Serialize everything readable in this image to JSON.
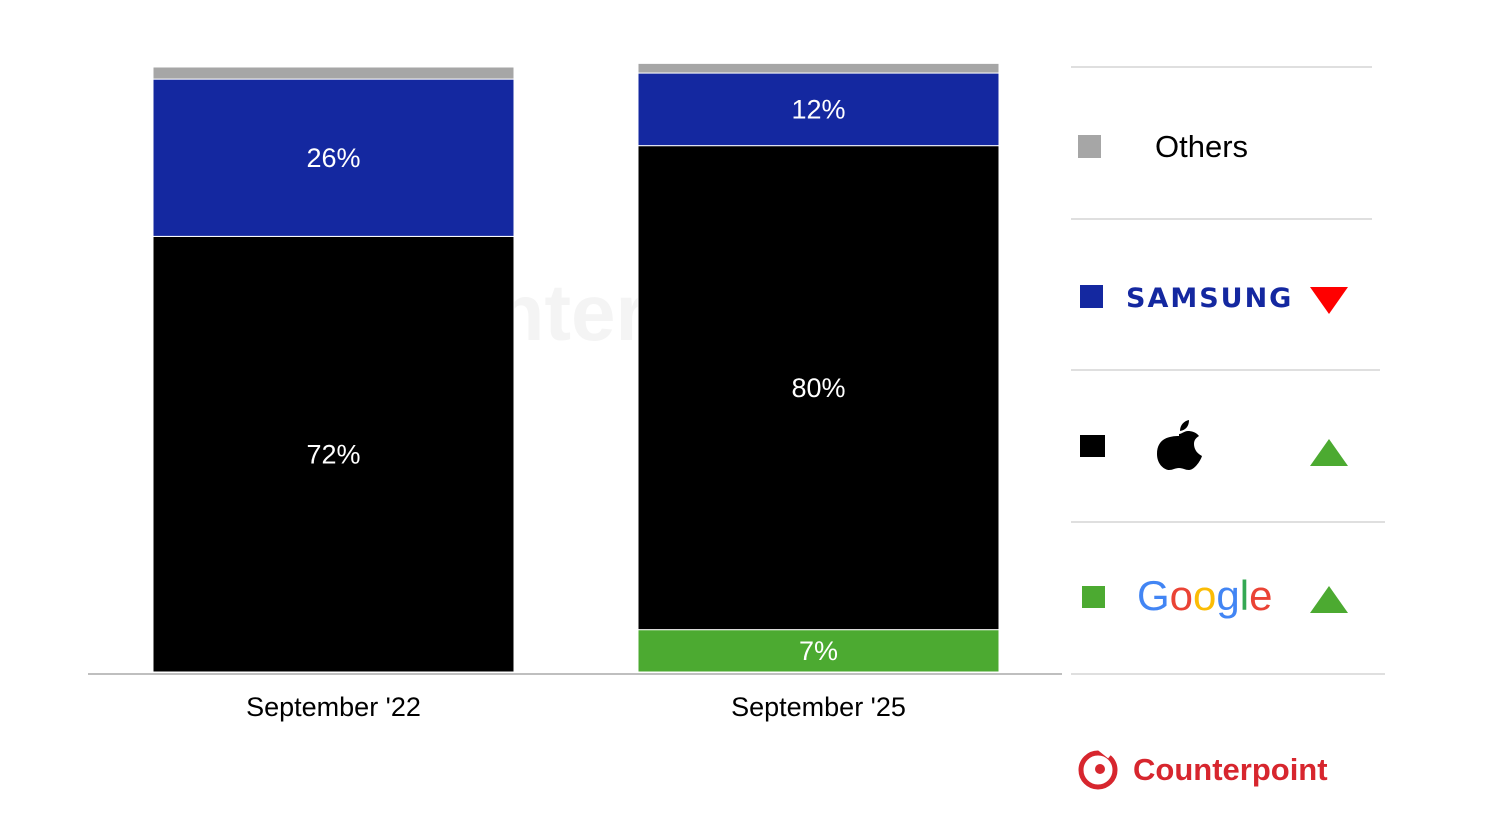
{
  "chart_data": {
    "type": "bar",
    "stacked": true,
    "categories": [
      "September '22",
      "September '25"
    ],
    "series": [
      {
        "key": "google",
        "values": [
          0,
          7
        ],
        "labels": [
          "",
          "7%"
        ],
        "color": "#4caa31"
      },
      {
        "key": "apple",
        "values": [
          72,
          80
        ],
        "labels": [
          "72%",
          "80%"
        ],
        "color": "#000000"
      },
      {
        "key": "samsung",
        "values": [
          26,
          12
        ],
        "labels": [
          "26%",
          "12%"
        ],
        "color": "#1428a0"
      },
      {
        "key": "others",
        "values": [
          2,
          1.6
        ],
        "labels": [
          "",
          ""
        ],
        "color": "#a6a6a6"
      }
    ],
    "ylim": [
      0,
      100
    ],
    "grid": false,
    "legend_position": "right"
  },
  "legend": [
    {
      "key": "others",
      "label": "Others",
      "swatch": "#a6a6a6",
      "trend": "none"
    },
    {
      "key": "samsung",
      "label": "SAMSUNG",
      "swatch": "#1428a0",
      "trend": "down",
      "trend_color": "#ff0000"
    },
    {
      "key": "apple",
      "label": "",
      "swatch": "#000000",
      "trend": "up",
      "trend_color": "#4caa31",
      "icon": "apple-logo-icon"
    },
    {
      "key": "google",
      "label": "Google",
      "swatch": "#4caa31",
      "trend": "up",
      "trend_color": "#4caa31"
    }
  ],
  "brand": {
    "name": "Counterpoint",
    "color": "#d7262e",
    "icon": "counterpoint-logo-icon"
  },
  "watermark": "Counterpoint"
}
